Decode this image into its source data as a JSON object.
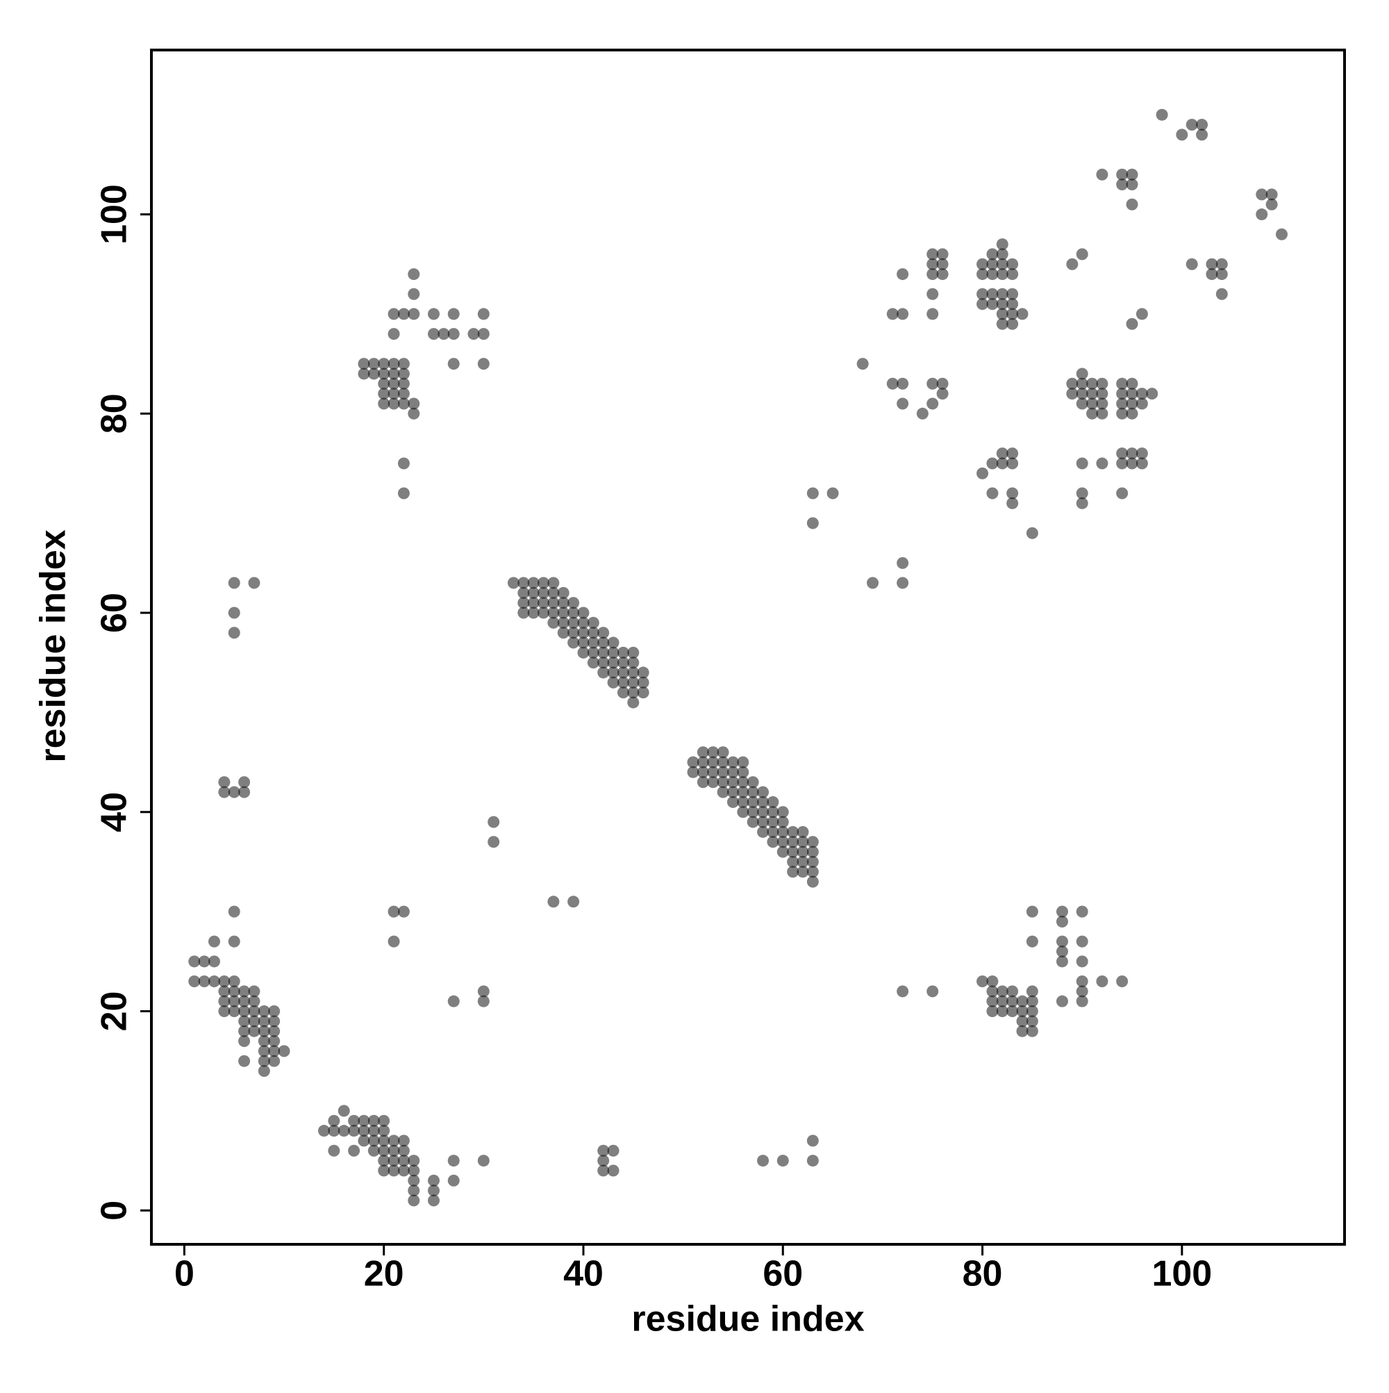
{
  "chart_data": {
    "type": "scatter",
    "xlabel": "residue index",
    "ylabel": "residue index",
    "xlim": [
      -3.3,
      116.3
    ],
    "ylim": [
      -3.4,
      116.5
    ],
    "xticks": [
      0,
      20,
      40,
      60,
      80,
      100
    ],
    "yticks": [
      0,
      20,
      40,
      60,
      80,
      100
    ],
    "color": "#000000",
    "alpha": 0.5,
    "x": [
      1,
      2,
      3,
      3,
      1,
      2,
      3,
      4,
      5,
      4,
      5,
      6,
      7,
      4,
      5,
      6,
      7,
      4,
      5,
      6,
      7,
      8,
      9,
      6,
      7,
      8,
      9,
      6,
      7,
      8,
      9,
      6,
      8,
      9,
      8,
      9,
      10,
      6,
      8,
      9,
      8,
      5,
      5,
      14,
      15,
      16,
      15,
      16,
      17,
      18,
      19,
      20,
      17,
      18,
      19,
      20,
      15,
      17,
      18,
      19,
      20,
      21,
      22,
      19,
      20,
      21,
      22,
      20,
      21,
      22,
      23,
      20,
      21,
      22,
      23,
      23,
      23,
      23,
      25,
      25,
      25,
      27,
      27,
      30,
      33,
      34,
      34,
      34,
      34,
      35,
      35,
      35,
      35,
      36,
      36,
      36,
      36,
      37,
      37,
      37,
      37,
      37,
      38,
      38,
      38,
      38,
      38,
      39,
      39,
      39,
      39,
      39,
      40,
      40,
      40,
      40,
      40,
      41,
      41,
      41,
      41,
      41,
      42,
      42,
      42,
      42,
      42,
      43,
      43,
      43,
      43,
      43,
      44,
      44,
      44,
      44,
      44,
      45,
      45,
      45,
      45,
      45,
      45,
      46,
      46,
      46,
      51,
      51,
      52,
      52,
      52,
      52,
      53,
      53,
      53,
      53,
      54,
      54,
      54,
      54,
      54,
      55,
      55,
      55,
      55,
      55,
      56,
      56,
      56,
      56,
      56,
      56,
      57,
      57,
      57,
      57,
      57,
      58,
      58,
      58,
      58,
      58,
      59,
      59,
      59,
      59,
      59,
      60,
      60,
      60,
      60,
      60,
      61,
      61,
      61,
      61,
      61,
      62,
      62,
      62,
      62,
      62,
      63,
      63,
      63,
      63,
      63,
      5,
      7,
      5,
      5,
      4,
      6,
      4,
      5,
      6,
      21,
      22,
      21,
      27,
      30,
      30,
      31,
      31,
      37,
      39,
      42,
      43,
      42,
      42,
      43,
      58,
      60,
      63,
      63,
      18,
      19,
      20,
      21,
      22,
      18,
      19,
      20,
      21,
      22,
      20,
      21,
      22,
      20,
      21,
      22,
      20,
      21,
      22,
      23,
      23,
      22,
      22,
      21,
      21,
      22,
      23,
      23,
      23,
      25,
      25,
      26,
      27,
      27,
      27,
      29,
      30,
      30,
      30,
      80,
      81,
      81,
      82,
      83,
      81,
      82,
      83,
      84,
      85,
      81,
      82,
      83,
      84,
      85,
      84,
      85,
      84,
      85,
      85,
      85,
      85,
      88,
      88,
      88,
      88,
      88,
      88,
      90,
      90,
      90,
      90,
      90,
      90,
      92,
      94,
      72,
      75,
      63,
      65,
      63,
      69,
      72,
      72,
      68,
      71,
      72,
      72,
      71,
      72,
      72,
      74,
      75,
      75,
      76,
      76,
      75,
      75,
      75,
      76,
      75,
      76,
      75,
      76,
      80,
      81,
      82,
      83,
      80,
      81,
      82,
      83,
      81,
      82,
      82,
      80,
      81,
      82,
      83,
      80,
      81,
      82,
      83,
      82,
      83,
      84,
      82,
      83,
      80,
      81,
      82,
      83,
      82,
      83,
      81,
      83,
      83,
      85,
      89,
      90,
      91,
      92,
      89,
      90,
      91,
      92,
      90,
      90,
      91,
      92,
      91,
      92,
      94,
      95,
      94,
      95,
      96,
      97,
      94,
      95,
      96,
      94,
      95,
      90,
      92,
      94,
      95,
      96,
      94,
      95,
      96,
      90,
      94,
      90,
      89,
      90,
      95,
      96,
      92,
      94,
      95,
      94,
      95,
      95,
      98,
      100,
      101,
      102,
      102,
      101,
      103,
      104,
      103,
      104,
      104,
      108,
      109,
      108,
      109,
      110
    ],
    "values": [
      25,
      25,
      25,
      27,
      23,
      23,
      23,
      23,
      23,
      22,
      22,
      22,
      22,
      21,
      21,
      21,
      21,
      20,
      20,
      20,
      20,
      20,
      20,
      19,
      19,
      19,
      19,
      18,
      18,
      18,
      18,
      17,
      17,
      17,
      16,
      16,
      16,
      15,
      15,
      15,
      14,
      27,
      30,
      8,
      8,
      8,
      9,
      10,
      9,
      9,
      9,
      9,
      8,
      8,
      8,
      8,
      6,
      6,
      7,
      7,
      7,
      7,
      7,
      6,
      6,
      6,
      6,
      5,
      5,
      5,
      5,
      4,
      4,
      4,
      4,
      3,
      2,
      1,
      3,
      2,
      1,
      5,
      3,
      5,
      63,
      60,
      61,
      62,
      63,
      60,
      61,
      62,
      63,
      60,
      61,
      62,
      63,
      59,
      60,
      61,
      62,
      63,
      58,
      59,
      60,
      61,
      62,
      57,
      58,
      59,
      60,
      61,
      56,
      57,
      58,
      59,
      60,
      55,
      56,
      57,
      58,
      59,
      54,
      55,
      56,
      57,
      58,
      53,
      54,
      55,
      56,
      57,
      52,
      53,
      54,
      55,
      56,
      51,
      52,
      53,
      54,
      55,
      56,
      52,
      53,
      54,
      44,
      45,
      43,
      44,
      45,
      46,
      43,
      44,
      45,
      46,
      42,
      43,
      44,
      45,
      46,
      41,
      42,
      43,
      44,
      45,
      40,
      41,
      42,
      43,
      44,
      45,
      39,
      40,
      41,
      42,
      43,
      38,
      39,
      40,
      41,
      42,
      37,
      38,
      39,
      40,
      41,
      36,
      37,
      38,
      39,
      40,
      34,
      35,
      36,
      37,
      38,
      34,
      35,
      36,
      37,
      38,
      33,
      34,
      35,
      36,
      37,
      63,
      63,
      60,
      58,
      43,
      43,
      42,
      42,
      42,
      30,
      30,
      27,
      21,
      22,
      21,
      39,
      37,
      31,
      31,
      6,
      6,
      5,
      4,
      4,
      5,
      5,
      7,
      5,
      85,
      85,
      85,
      85,
      85,
      84,
      84,
      84,
      84,
      84,
      83,
      83,
      83,
      82,
      82,
      82,
      81,
      81,
      81,
      81,
      80,
      75,
      72,
      88,
      90,
      90,
      90,
      92,
      94,
      90,
      88,
      88,
      88,
      90,
      85,
      88,
      88,
      90,
      85,
      23,
      23,
      22,
      22,
      22,
      21,
      21,
      21,
      21,
      22,
      20,
      20,
      20,
      20,
      20,
      19,
      19,
      18,
      18,
      21,
      27,
      30,
      30,
      29,
      27,
      26,
      25,
      21,
      30,
      27,
      25,
      23,
      22,
      21,
      23,
      23,
      22,
      22,
      72,
      72,
      69,
      63,
      63,
      65,
      85,
      90,
      90,
      94,
      83,
      83,
      81,
      80,
      81,
      83,
      83,
      82,
      90,
      92,
      94,
      94,
      95,
      95,
      96,
      96,
      95,
      95,
      95,
      95,
      94,
      94,
      94,
      94,
      96,
      96,
      97,
      92,
      92,
      92,
      92,
      91,
      91,
      91,
      91,
      90,
      90,
      90,
      89,
      89,
      74,
      75,
      75,
      75,
      76,
      76,
      72,
      72,
      71,
      68,
      83,
      83,
      83,
      83,
      82,
      82,
      82,
      82,
      84,
      81,
      81,
      81,
      80,
      80,
      83,
      83,
      82,
      82,
      82,
      82,
      81,
      81,
      81,
      80,
      80,
      75,
      75,
      76,
      76,
      76,
      75,
      75,
      75,
      72,
      72,
      71,
      95,
      96,
      89,
      90,
      104,
      104,
      104,
      103,
      103,
      101,
      110,
      108,
      109,
      109,
      108,
      95,
      95,
      95,
      94,
      94,
      92,
      102,
      102,
      100,
      101,
      98
    ]
  }
}
